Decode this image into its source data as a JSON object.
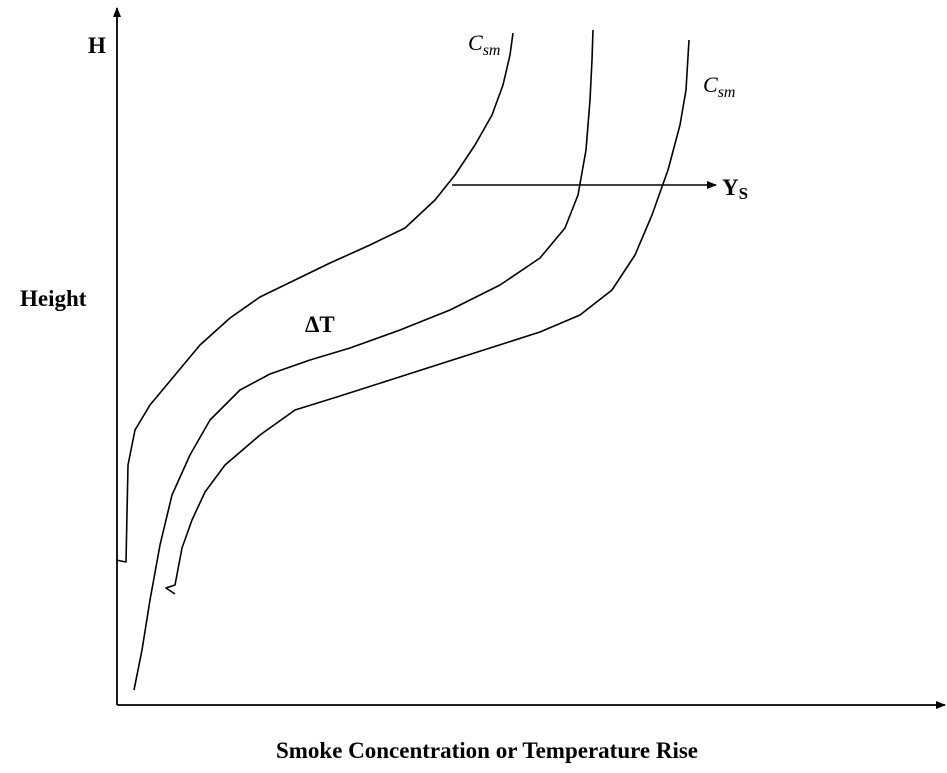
{
  "axis_label_top": "H",
  "axis_label_side": "Height",
  "axis_label_bottom": "Smoke Concentration or Temperature Rise",
  "curve_labels": [
    {
      "main": "C",
      "sub": "sm"
    },
    {
      "main": "C",
      "sub": "sm"
    }
  ],
  "middle_label": "ΔT",
  "arrow_label": {
    "main": "Y",
    "sub": "S"
  }
}
